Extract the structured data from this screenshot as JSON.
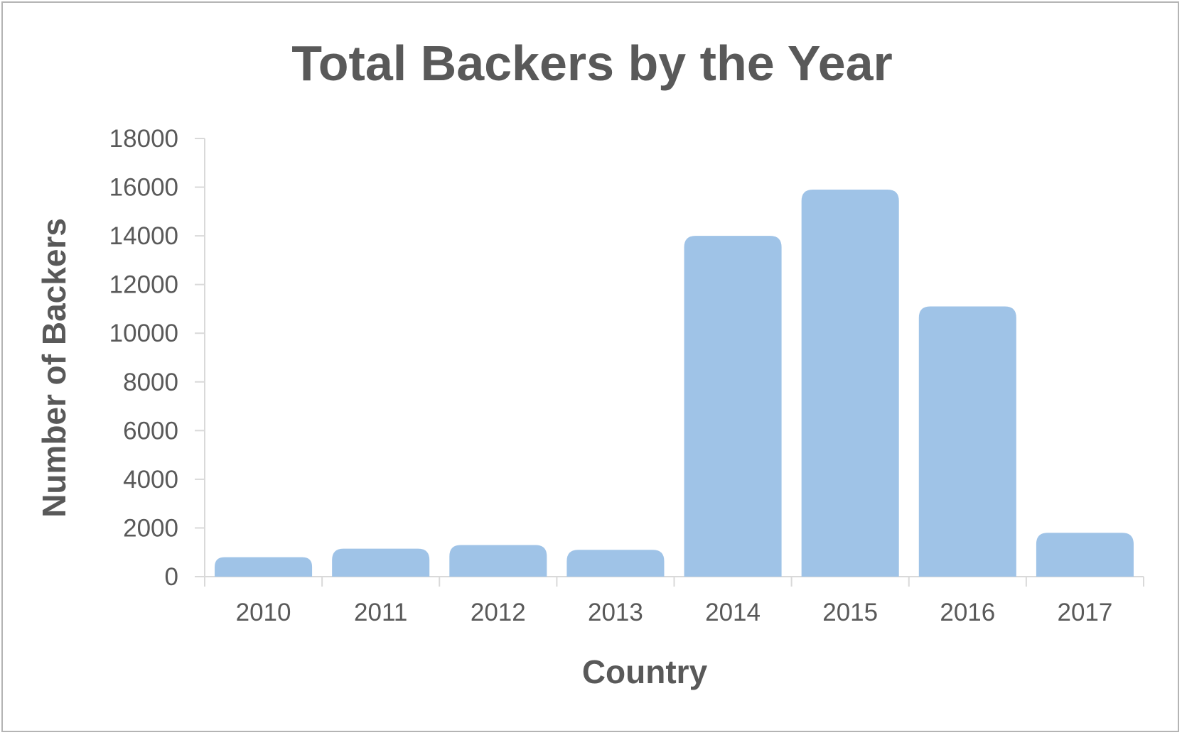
{
  "chart_data": {
    "type": "bar",
    "title": "Total Backers by the Year",
    "xlabel": "Country",
    "ylabel": "Number of Backers",
    "categories": [
      "2010",
      "2011",
      "2012",
      "2013",
      "2014",
      "2015",
      "2016",
      "2017"
    ],
    "values": [
      800,
      1150,
      1300,
      1100,
      14000,
      15900,
      11100,
      1800
    ],
    "ylim": [
      0,
      18000
    ],
    "yticks": [
      "0",
      "2000",
      "4000",
      "6000",
      "8000",
      "10000",
      "12000",
      "14000",
      "16000",
      "18000"
    ],
    "grid": false,
    "legend": "none",
    "colors": {
      "bar": "#9fc3e7",
      "text": "#595959",
      "axis": "#d9d9d9",
      "frame": "#b4b4b4"
    }
  }
}
